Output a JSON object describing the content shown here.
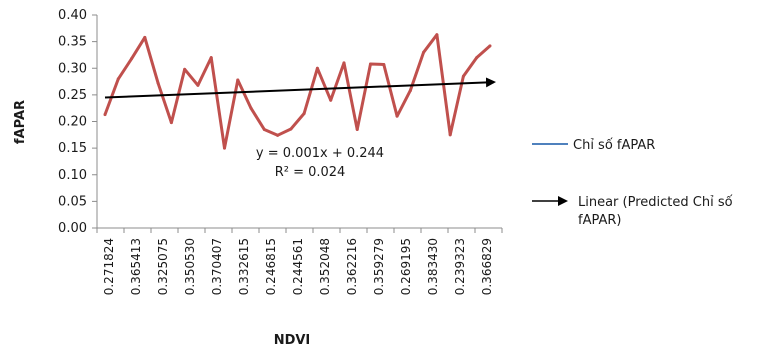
{
  "chart_data": {
    "type": "line",
    "xlabel": "NDVI",
    "ylabel": "fAPAR",
    "ylim": [
      0,
      0.4
    ],
    "y_ticks": [
      "0.00",
      "0.05",
      "0.10",
      "0.15",
      "0.20",
      "0.25",
      "0.30",
      "0.35",
      "0.40"
    ],
    "x_tick_labels": [
      "0.271824",
      "0.365413",
      "0.325075",
      "0.350530",
      "0.370407",
      "0.332615",
      "0.246815",
      "0.244561",
      "0.352048",
      "0.362216",
      "0.359279",
      "0.269195",
      "0.383430",
      "0.239323",
      "0.366829"
    ],
    "grid": false,
    "legend_position": "right",
    "series": [
      {
        "name": "Chỉ số fAPAR",
        "color": "#c0504d",
        "legend_color": "#4f81bd",
        "values": [
          0.213,
          0.28,
          0.318,
          0.358,
          0.272,
          0.198,
          0.298,
          0.268,
          0.32,
          0.15,
          0.278,
          0.225,
          0.185,
          0.174,
          0.186,
          0.215,
          0.3,
          0.24,
          0.31,
          0.185,
          0.308,
          0.307,
          0.21,
          0.258,
          0.33,
          0.363,
          0.175,
          0.285,
          0.32,
          0.342
        ]
      }
    ],
    "trendline": {
      "name": "Linear (Predicted Chỉ số fAPAR)",
      "legend_lines": [
        "Linear (Predicted Chỉ số",
        "fAPAR)"
      ],
      "color": "#000000",
      "start": 0.245,
      "end": 0.274,
      "equation": "y = 0.001x + 0.244",
      "r2": "R² = 0.024"
    }
  }
}
